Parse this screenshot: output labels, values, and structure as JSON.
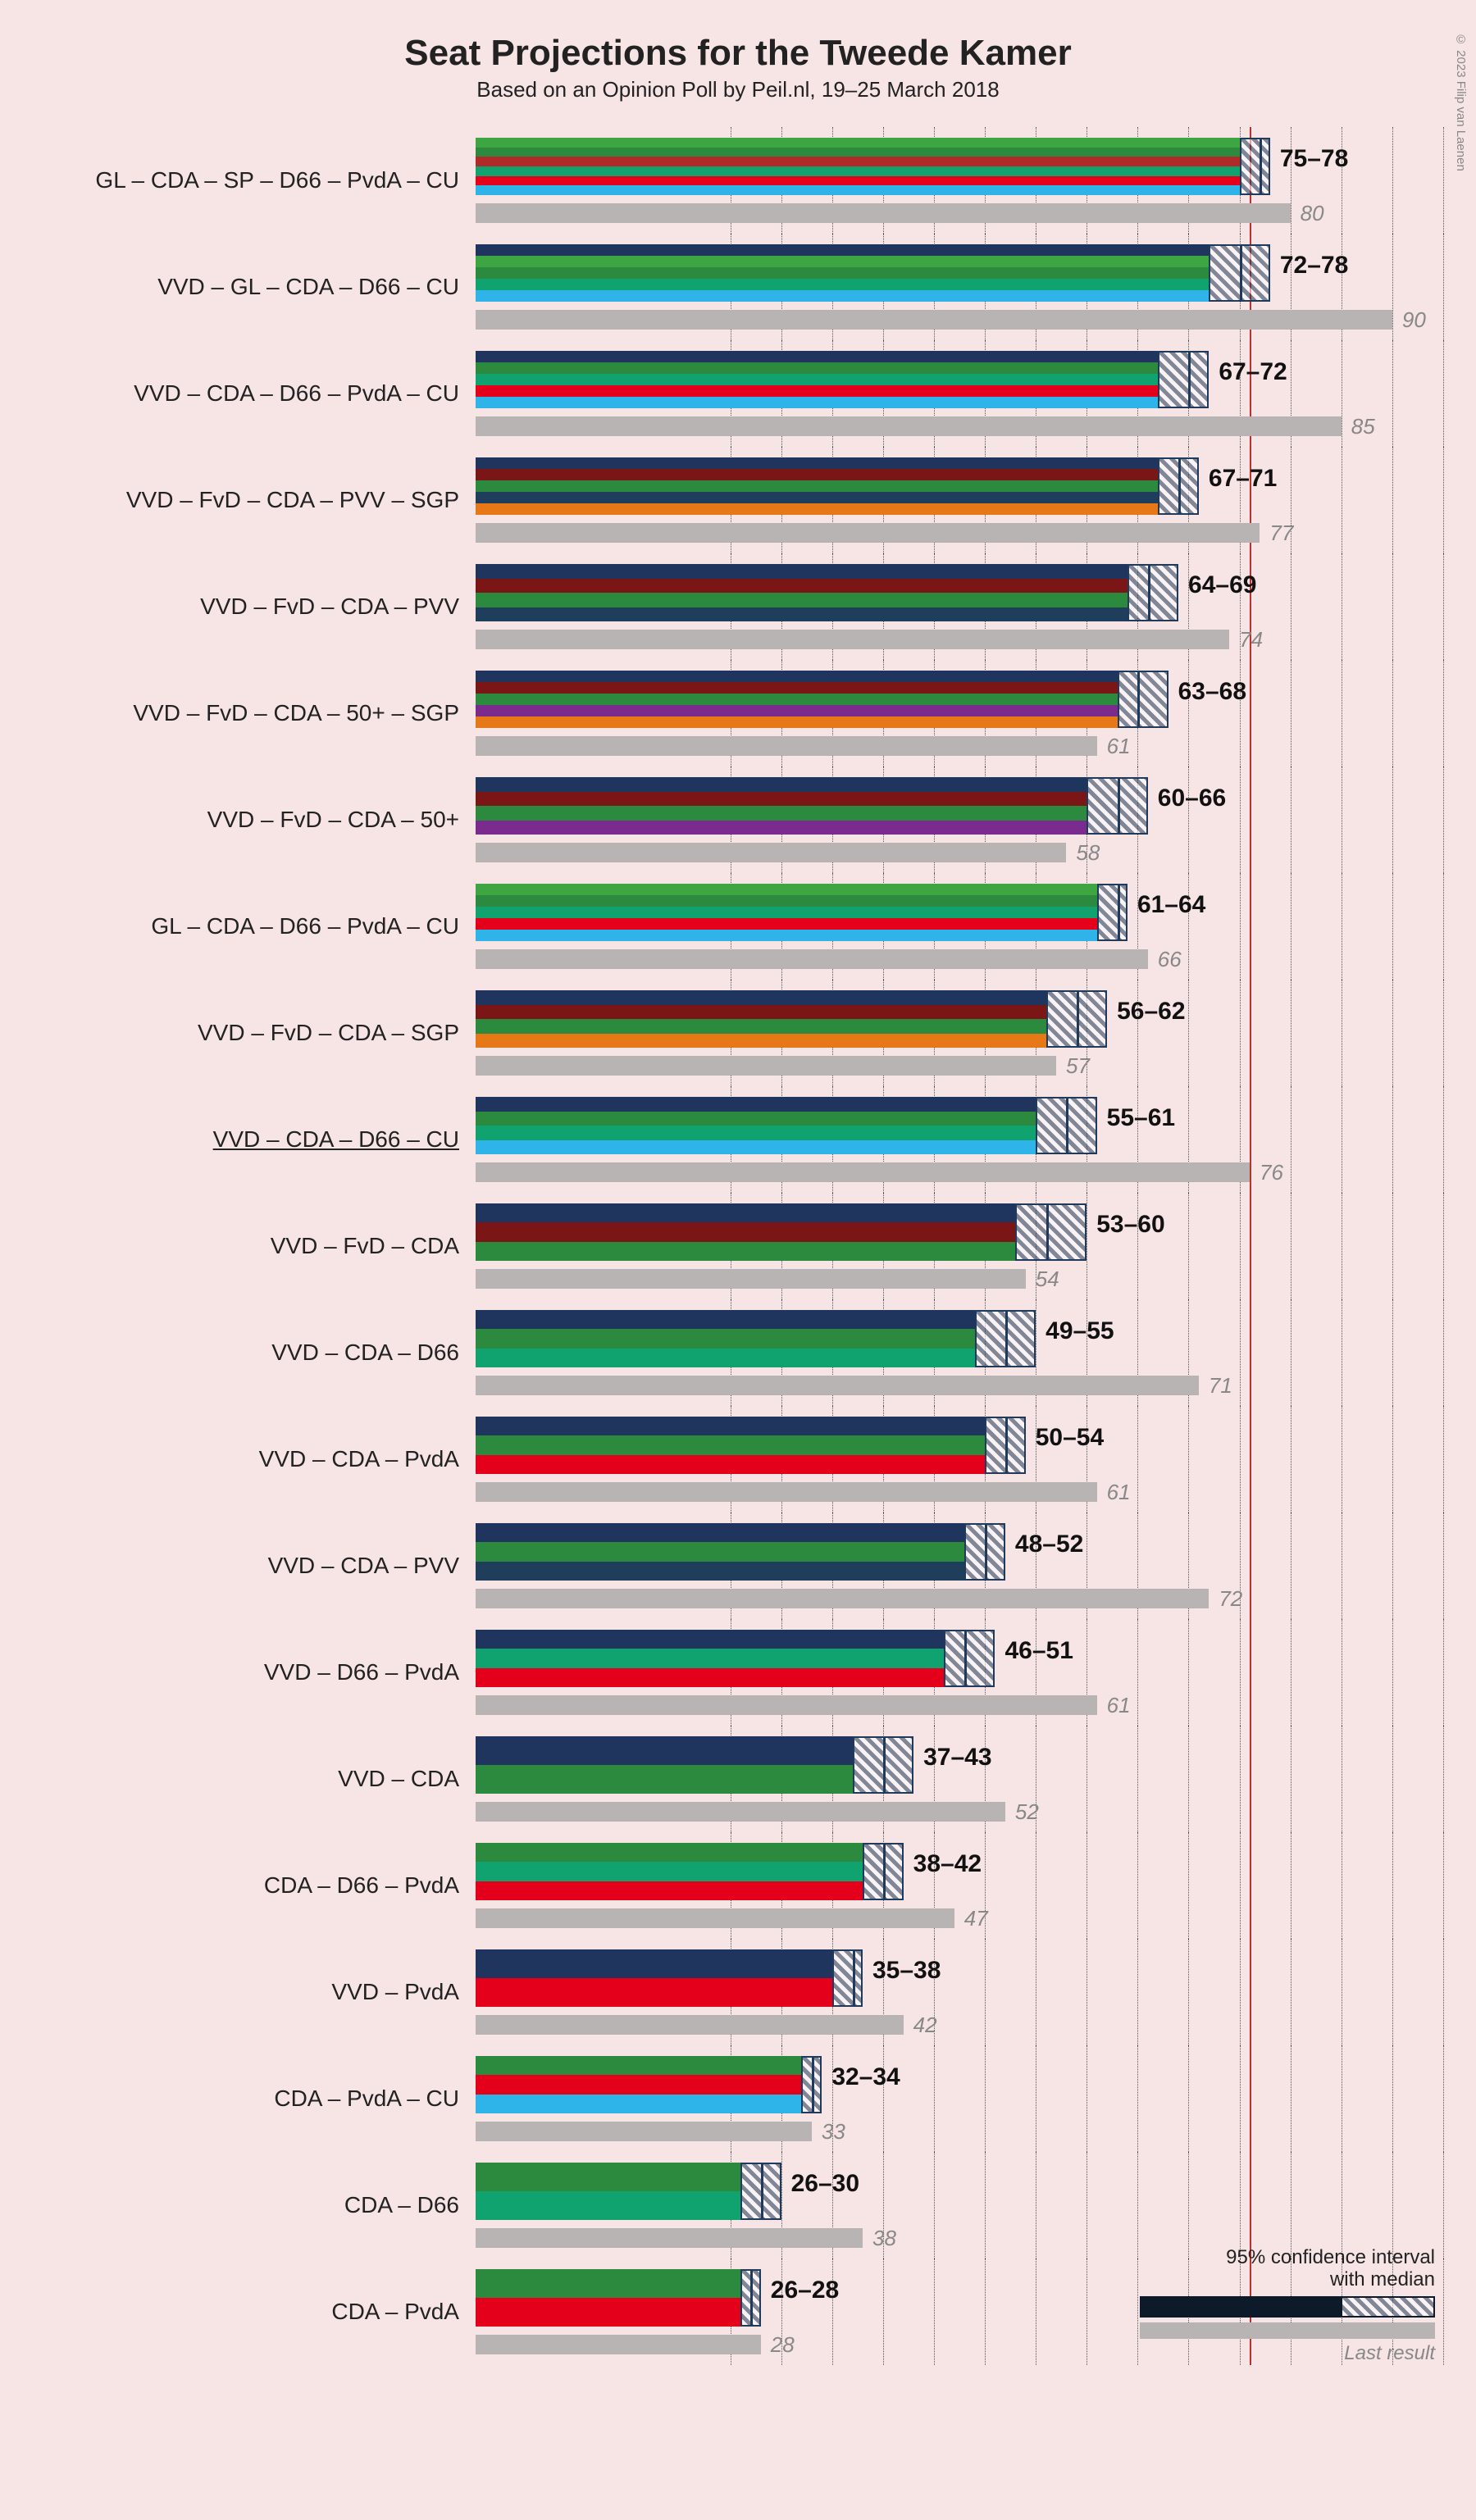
{
  "title": "Seat Projections for the Tweede Kamer",
  "subtitle": "Based on an Opinion Poll by Peil.nl, 19–25 March 2018",
  "copyright": "© 2023 Filip van Laenen",
  "chart": {
    "type": "bar",
    "xmin": 0,
    "xmax": 95,
    "grid_start": 25,
    "grid_step": 5,
    "majority_line": 76,
    "background_color": "#f7e4e4",
    "grid_color": "#555555",
    "majority_color": "#c03030",
    "solid_bar_color": "#0d1a2a",
    "ci_border_color": "#1f3a5a",
    "last_bar_color": "#b9b4b4",
    "range_fontsize": 30,
    "label_fontsize": 28,
    "last_fontsize": 26
  },
  "party_colors": {
    "VVD": "#1f355e",
    "GL": "#3da642",
    "CDA": "#2b8a3e",
    "SP": "#b02a2a",
    "D66": "#11a36f",
    "PvdA": "#e4001b",
    "CU": "#2fb4e9",
    "FvD": "#7a1616",
    "PVV": "#1e3e5c",
    "SGP": "#e67817",
    "50+": "#7b2b8e"
  },
  "rows": [
    {
      "label": "GL – CDA – SP – D66 – PvdA – CU",
      "parties": [
        "GL",
        "CDA",
        "SP",
        "D66",
        "PvdA",
        "CU"
      ],
      "lo": 75,
      "hi": 78,
      "median": 77,
      "last": 80,
      "range_text": "75–78",
      "underlined": false
    },
    {
      "label": "VVD – GL – CDA – D66 – CU",
      "parties": [
        "VVD",
        "GL",
        "CDA",
        "D66",
        "CU"
      ],
      "lo": 72,
      "hi": 78,
      "median": 75,
      "last": 90,
      "range_text": "72–78",
      "underlined": false
    },
    {
      "label": "VVD – CDA – D66 – PvdA – CU",
      "parties": [
        "VVD",
        "CDA",
        "D66",
        "PvdA",
        "CU"
      ],
      "lo": 67,
      "hi": 72,
      "median": 70,
      "last": 85,
      "range_text": "67–72",
      "underlined": false
    },
    {
      "label": "VVD – FvD – CDA – PVV – SGP",
      "parties": [
        "VVD",
        "FvD",
        "CDA",
        "PVV",
        "SGP"
      ],
      "lo": 67,
      "hi": 71,
      "median": 69,
      "last": 77,
      "range_text": "67–71",
      "underlined": false
    },
    {
      "label": "VVD – FvD – CDA – PVV",
      "parties": [
        "VVD",
        "FvD",
        "CDA",
        "PVV"
      ],
      "lo": 64,
      "hi": 69,
      "median": 66,
      "last": 74,
      "range_text": "64–69",
      "underlined": false
    },
    {
      "label": "VVD – FvD – CDA – 50+ – SGP",
      "parties": [
        "VVD",
        "FvD",
        "CDA",
        "50+",
        "SGP"
      ],
      "lo": 63,
      "hi": 68,
      "median": 65,
      "last": 61,
      "range_text": "63–68",
      "underlined": false
    },
    {
      "label": "VVD – FvD – CDA – 50+",
      "parties": [
        "VVD",
        "FvD",
        "CDA",
        "50+"
      ],
      "lo": 60,
      "hi": 66,
      "median": 63,
      "last": 58,
      "range_text": "60–66",
      "underlined": false
    },
    {
      "label": "GL – CDA – D66 – PvdA – CU",
      "parties": [
        "GL",
        "CDA",
        "D66",
        "PvdA",
        "CU"
      ],
      "lo": 61,
      "hi": 64,
      "median": 63,
      "last": 66,
      "range_text": "61–64",
      "underlined": false
    },
    {
      "label": "VVD – FvD – CDA – SGP",
      "parties": [
        "VVD",
        "FvD",
        "CDA",
        "SGP"
      ],
      "lo": 56,
      "hi": 62,
      "median": 59,
      "last": 57,
      "range_text": "56–62",
      "underlined": false
    },
    {
      "label": "VVD – CDA – D66 – CU",
      "parties": [
        "VVD",
        "CDA",
        "D66",
        "CU"
      ],
      "lo": 55,
      "hi": 61,
      "median": 58,
      "last": 76,
      "range_text": "55–61",
      "underlined": true
    },
    {
      "label": "VVD – FvD – CDA",
      "parties": [
        "VVD",
        "FvD",
        "CDA"
      ],
      "lo": 53,
      "hi": 60,
      "median": 56,
      "last": 54,
      "range_text": "53–60",
      "underlined": false
    },
    {
      "label": "VVD – CDA – D66",
      "parties": [
        "VVD",
        "CDA",
        "D66"
      ],
      "lo": 49,
      "hi": 55,
      "median": 52,
      "last": 71,
      "range_text": "49–55",
      "underlined": false
    },
    {
      "label": "VVD – CDA – PvdA",
      "parties": [
        "VVD",
        "CDA",
        "PvdA"
      ],
      "lo": 50,
      "hi": 54,
      "median": 52,
      "last": 61,
      "range_text": "50–54",
      "underlined": false
    },
    {
      "label": "VVD – CDA – PVV",
      "parties": [
        "VVD",
        "CDA",
        "PVV"
      ],
      "lo": 48,
      "hi": 52,
      "median": 50,
      "last": 72,
      "range_text": "48–52",
      "underlined": false
    },
    {
      "label": "VVD – D66 – PvdA",
      "parties": [
        "VVD",
        "D66",
        "PvdA"
      ],
      "lo": 46,
      "hi": 51,
      "median": 48,
      "last": 61,
      "range_text": "46–51",
      "underlined": false
    },
    {
      "label": "VVD – CDA",
      "parties": [
        "VVD",
        "CDA"
      ],
      "lo": 37,
      "hi": 43,
      "median": 40,
      "last": 52,
      "range_text": "37–43",
      "underlined": false
    },
    {
      "label": "CDA – D66 – PvdA",
      "parties": [
        "CDA",
        "D66",
        "PvdA"
      ],
      "lo": 38,
      "hi": 42,
      "median": 40,
      "last": 47,
      "range_text": "38–42",
      "underlined": false
    },
    {
      "label": "VVD – PvdA",
      "parties": [
        "VVD",
        "PvdA"
      ],
      "lo": 35,
      "hi": 38,
      "median": 37,
      "last": 42,
      "range_text": "35–38",
      "underlined": false
    },
    {
      "label": "CDA – PvdA – CU",
      "parties": [
        "CDA",
        "PvdA",
        "CU"
      ],
      "lo": 32,
      "hi": 34,
      "median": 33,
      "last": 33,
      "range_text": "32–34",
      "underlined": false
    },
    {
      "label": "CDA – D66",
      "parties": [
        "CDA",
        "D66"
      ],
      "lo": 26,
      "hi": 30,
      "median": 28,
      "last": 38,
      "range_text": "26–30",
      "underlined": false
    },
    {
      "label": "CDA – PvdA",
      "parties": [
        "CDA",
        "PvdA"
      ],
      "lo": 26,
      "hi": 28,
      "median": 27,
      "last": 28,
      "range_text": "26–28",
      "underlined": false
    }
  ],
  "legend": {
    "ci_line1": "95% confidence interval",
    "ci_line2": "with median",
    "last": "Last result"
  }
}
